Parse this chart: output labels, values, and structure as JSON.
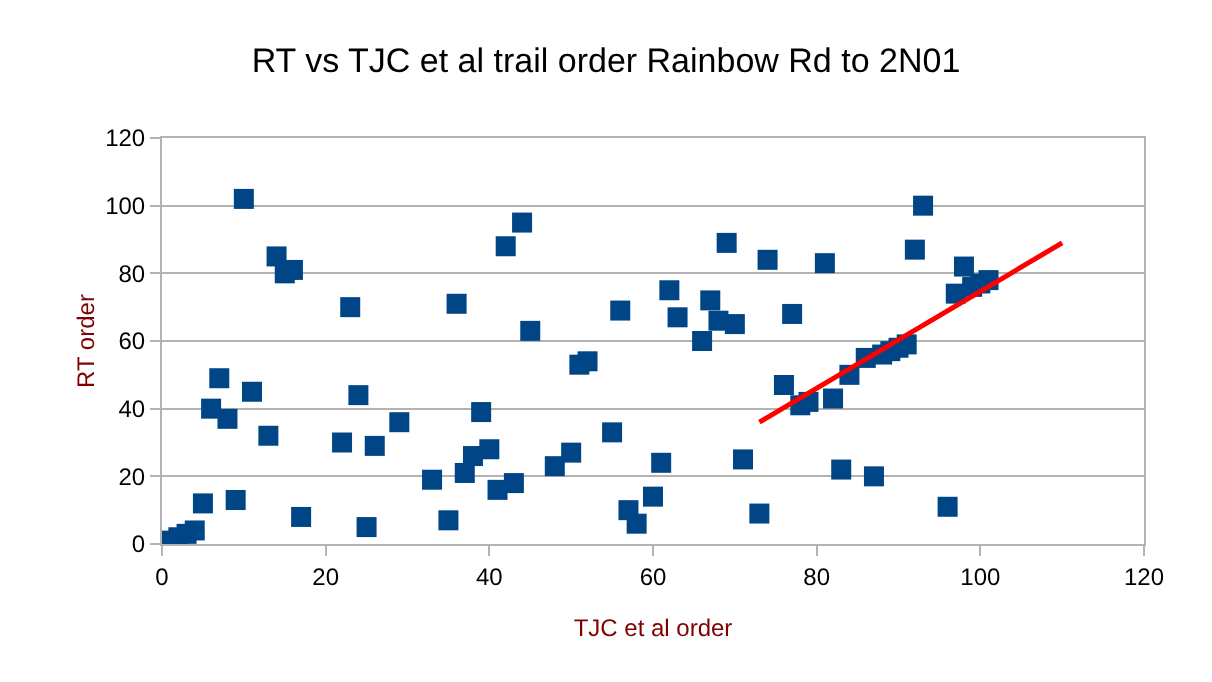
{
  "chart_data": {
    "type": "scatter",
    "title": "RT vs TJC et al trail order Rainbow Rd to 2N01",
    "xlabel": "TJC et al order",
    "ylabel": "RT order",
    "xlim": [
      0,
      120
    ],
    "xticks": [
      0,
      20,
      40,
      60,
      80,
      100,
      120
    ],
    "ylim": [
      0,
      120
    ],
    "yticks": [
      0,
      20,
      40,
      60,
      80,
      100,
      120
    ],
    "grid": "y",
    "marker": "square",
    "series": [
      {
        "color": "#004586",
        "x": [
          1,
          2,
          3,
          4,
          5,
          6,
          7,
          8,
          9,
          10,
          11,
          13,
          14,
          15,
          16,
          17,
          22,
          23,
          24,
          25,
          26,
          29,
          33,
          35,
          36,
          37,
          38,
          39,
          40,
          41,
          42,
          43,
          44,
          45,
          48,
          50,
          51,
          52,
          55,
          56,
          57,
          58,
          60,
          61,
          62,
          63,
          66,
          67,
          68,
          69,
          70,
          71,
          73,
          74,
          76,
          77,
          78,
          79,
          81,
          82,
          83,
          84,
          86,
          87,
          88,
          89,
          90,
          91,
          92,
          93,
          96,
          97,
          98,
          99,
          100,
          101
        ],
        "values": [
          1,
          2,
          3,
          4,
          12,
          40,
          49,
          37,
          13,
          102,
          45,
          32,
          85,
          80,
          81,
          8,
          30,
          70,
          44,
          5,
          29,
          36,
          19,
          7,
          71,
          21,
          26,
          39,
          28,
          16,
          88,
          18,
          95,
          63,
          23,
          27,
          53,
          54,
          33,
          69,
          10,
          6,
          14,
          24,
          75,
          67,
          60,
          72,
          66,
          89,
          65,
          25,
          9,
          84,
          47,
          68,
          41,
          42,
          83,
          43,
          22,
          50,
          55,
          20,
          56,
          57,
          58,
          59,
          87,
          100,
          11,
          74,
          82,
          76,
          77,
          78
        ]
      },
      {
        "type": "line",
        "color": "#ff0000",
        "marker": "none",
        "x": [
          73,
          110
        ],
        "values": [
          36,
          89
        ]
      }
    ]
  }
}
